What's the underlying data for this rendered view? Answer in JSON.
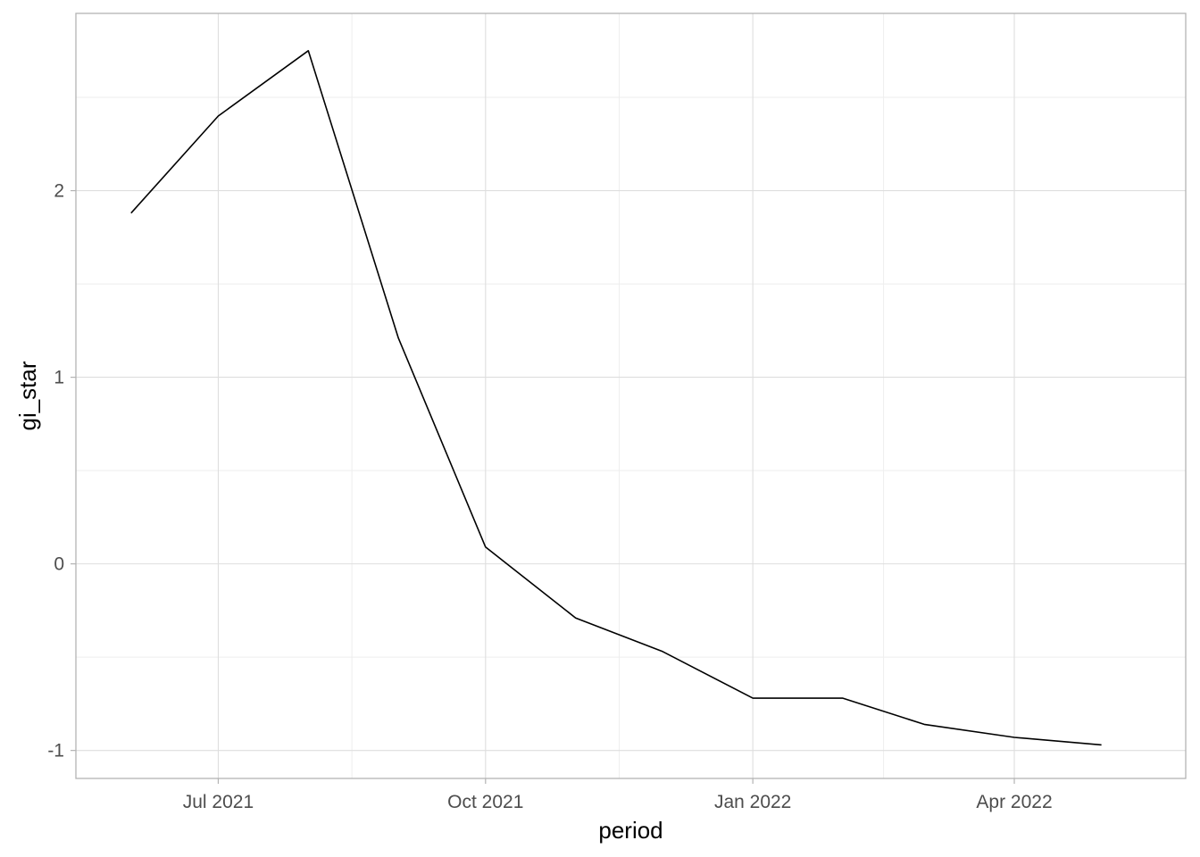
{
  "chart_data": {
    "type": "line",
    "title": "",
    "xlabel": "period",
    "ylabel": "gi_star",
    "x_type": "date",
    "xlim": [
      "2021-05-13",
      "2022-05-30"
    ],
    "ylim": [
      -1.15,
      2.95
    ],
    "x_ticks": [
      {
        "date": "2021-07-01",
        "label": "Jul 2021"
      },
      {
        "date": "2021-10-01",
        "label": "Oct 2021"
      },
      {
        "date": "2022-01-01",
        "label": "Jan 2022"
      },
      {
        "date": "2022-04-01",
        "label": "Apr 2022"
      }
    ],
    "x_minor_ticks": [
      "2021-08-16",
      "2021-11-16",
      "2022-02-15"
    ],
    "y_ticks": [
      {
        "value": -1,
        "label": "-1"
      },
      {
        "value": 0,
        "label": "0"
      },
      {
        "value": 1,
        "label": "1"
      },
      {
        "value": 2,
        "label": "2"
      }
    ],
    "y_minor_ticks": [
      -0.5,
      0.5,
      1.5,
      2.5
    ],
    "grid": true,
    "legend": "none",
    "series": [
      {
        "color": "#000000",
        "points": [
          {
            "x": "2021-06-01",
            "y": 1.88
          },
          {
            "x": "2021-07-01",
            "y": 2.4
          },
          {
            "x": "2021-08-01",
            "y": 2.75
          },
          {
            "x": "2021-09-01",
            "y": 1.21
          },
          {
            "x": "2021-10-01",
            "y": 0.09
          },
          {
            "x": "2021-11-01",
            "y": -0.29
          },
          {
            "x": "2021-12-01",
            "y": -0.47
          },
          {
            "x": "2022-01-01",
            "y": -0.72
          },
          {
            "x": "2022-02-01",
            "y": -0.72
          },
          {
            "x": "2022-03-01",
            "y": -0.86
          },
          {
            "x": "2022-04-01",
            "y": -0.93
          },
          {
            "x": "2022-05-01",
            "y": -0.97
          }
        ]
      }
    ],
    "colors": {
      "panel_border": "#b3b3b3",
      "grid_major": "#dedede",
      "grid_minor": "#eeeeee",
      "line": "#000000"
    }
  }
}
